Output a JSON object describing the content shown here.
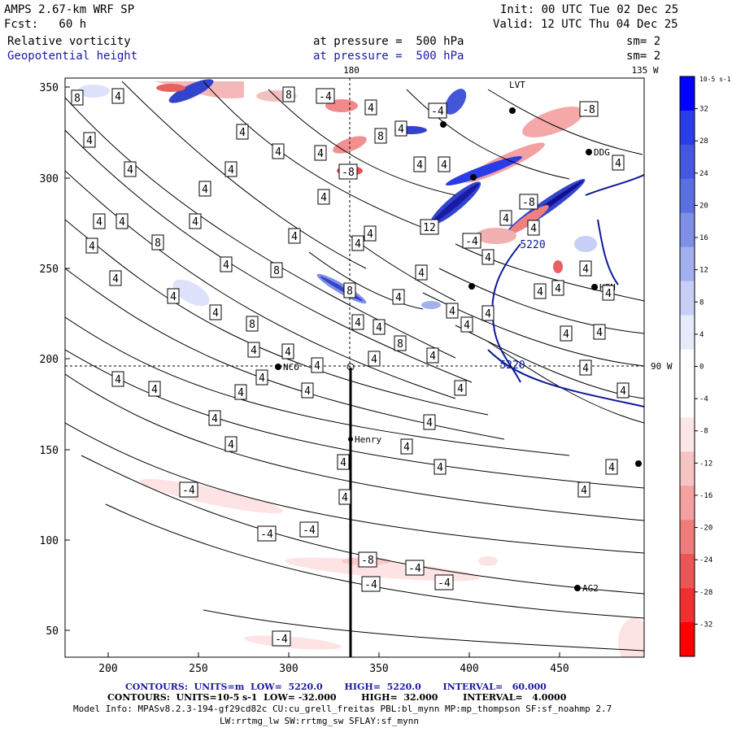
{
  "header": {
    "model": "AMPS 2.67-km WRF SP",
    "forecast": "Fcst:   60 h",
    "init": "Init: 00 UTC Tue 02 Dec 25",
    "valid": "Valid: 12 UTC Thu 04 Dec 25",
    "field1": "Relative vorticity",
    "field1_level": "at pressure =  500 hPa",
    "field1_sm": "sm= 2",
    "field2": "Geopotential height",
    "field2_level": "at pressure =  500 hPa",
    "field2_sm": "sm= 2",
    "lon_top_mid": "180",
    "lon_top_right": "135 W",
    "lon_right": "90 W"
  },
  "x_ticks": [
    "200",
    "250",
    "300",
    "350",
    "400",
    "450"
  ],
  "y_ticks": [
    "350",
    "300",
    "250",
    "200",
    "150",
    "100",
    "50"
  ],
  "stations": [
    {
      "name": "NCO"
    },
    {
      "name": "Henry"
    },
    {
      "name": "AG2"
    },
    {
      "name": "HPN"
    },
    {
      "name": "DDG"
    },
    {
      "name": "LVT"
    }
  ],
  "contour_labels": {
    "height": "5220",
    "vorticity": [
      "4",
      "-4",
      "8",
      "-8",
      "12"
    ]
  },
  "colorbar": {
    "unit": "10-5 s-1",
    "ticks": [
      "32",
      "28",
      "24",
      "20",
      "16",
      "12",
      "8",
      "4",
      "0",
      "-4",
      "-8",
      "-12",
      "-16",
      "-20",
      "-24",
      "-28",
      "-32"
    ],
    "colors": [
      "#0000ff",
      "#2a3be8",
      "#4756e0",
      "#5c6fe0",
      "#7f8fe6",
      "#a3b0ef",
      "#c8cff6",
      "#e6eafb",
      "#ffffff",
      "#ffffff",
      "#fde6e6",
      "#f7c4c4",
      "#f2a0a0",
      "#ee7c7c",
      "#ea5656",
      "#f03030",
      "#ff0000"
    ]
  },
  "footer": {
    "line1_label": "CONTOURS:  UNITS=m  LOW=  5220.0       HIGH=  5220.0       INTERVAL=   60.000",
    "line2_label": "CONTOURS:  UNITS=10-5 s-1  LOW= -32.000        HIGH=  32.000        INTERVAL=   4.0000",
    "line3": "Model Info: MPASv8.2.3-194-gf29cd82c CU:cu_grell_freitas PBL:bl_mynn MP:mp_thompson SF:sf_noahmp 2.7",
    "line4": "LW:rrtmg_lw SW:rrtmg_sw SFLAY:sf_mynn"
  }
}
